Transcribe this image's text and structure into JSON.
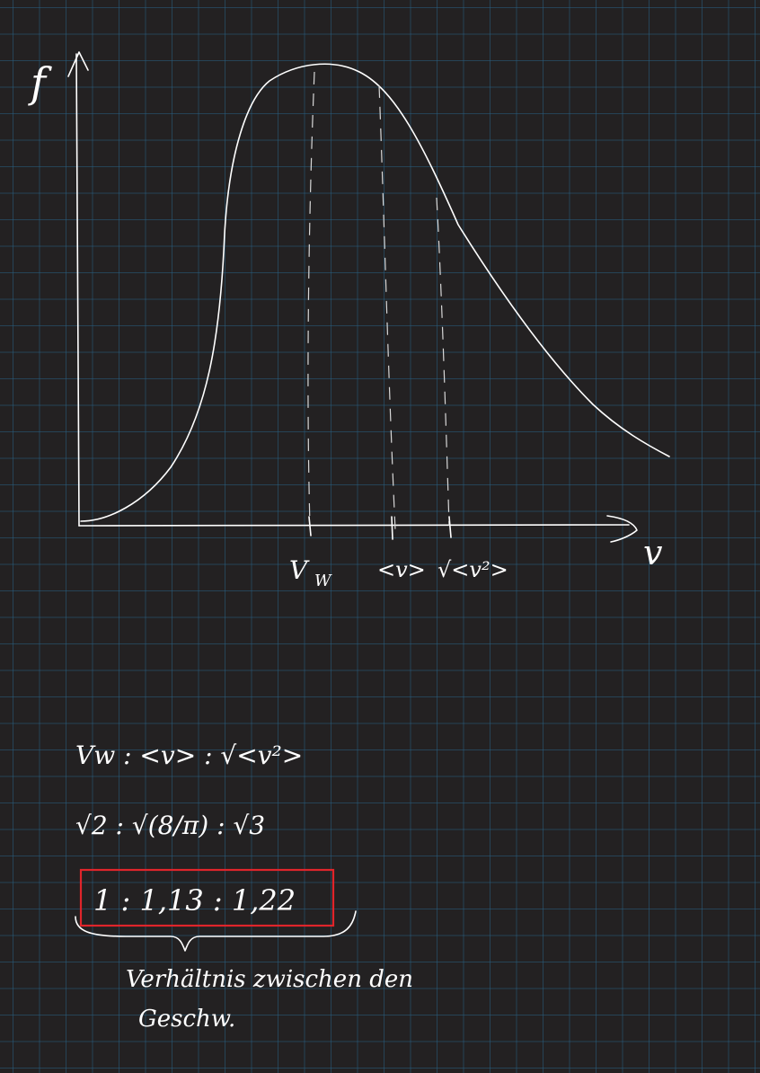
{
  "graph": {
    "y_axis_label": "f",
    "x_axis_label": "v",
    "markers": {
      "v_w": "V",
      "v_w_sub": "W",
      "mean_v": "<v>",
      "rms_v": "√<v²>"
    }
  },
  "notes": {
    "line1": "Vw : <v> : √<v²>",
    "line2": "√2 : √(8/π) : √3",
    "result": "1 : 1,13 : 1,22",
    "caption_line1": "Verhältnis zwischen den",
    "caption_line2": "Geschw."
  },
  "colors": {
    "background": "#232122",
    "grid": "#285f82",
    "ink": "#ffffff",
    "highlight_box": "#e0252b"
  }
}
